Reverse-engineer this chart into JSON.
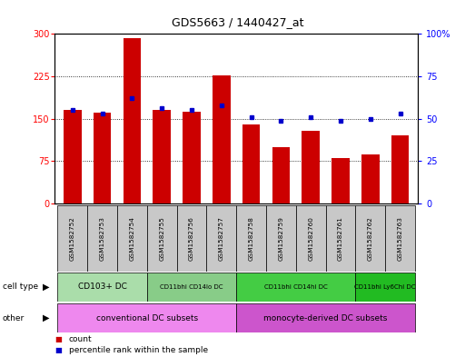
{
  "title": "GDS5663 / 1440427_at",
  "samples": [
    "GSM1582752",
    "GSM1582753",
    "GSM1582754",
    "GSM1582755",
    "GSM1582756",
    "GSM1582757",
    "GSM1582758",
    "GSM1582759",
    "GSM1582760",
    "GSM1582761",
    "GSM1582762",
    "GSM1582763"
  ],
  "counts": [
    165,
    160,
    293,
    165,
    163,
    226,
    140,
    100,
    128,
    80,
    87,
    120
  ],
  "percentiles": [
    55,
    53,
    62,
    56,
    55,
    58,
    51,
    49,
    51,
    49,
    50,
    53
  ],
  "ylim_left": [
    0,
    300
  ],
  "ylim_right": [
    0,
    100
  ],
  "yticks_left": [
    0,
    75,
    150,
    225,
    300
  ],
  "yticks_right": [
    0,
    25,
    50,
    75,
    100
  ],
  "bar_color": "#cc0000",
  "dot_color": "#0000cc",
  "cell_type_groups": [
    {
      "label": "CD103+ DC",
      "start": 0,
      "end": 2,
      "color": "#aaddaa"
    },
    {
      "label": "CD11bhi CD14lo DC",
      "start": 3,
      "end": 5,
      "color": "#88cc88"
    },
    {
      "label": "CD11bhi CD14hi DC",
      "start": 6,
      "end": 9,
      "color": "#44cc44"
    },
    {
      "label": "CD11bhi Ly6Chi DC",
      "start": 10,
      "end": 11,
      "color": "#22bb22"
    }
  ],
  "other_groups": [
    {
      "label": "conventional DC subsets",
      "start": 0,
      "end": 5,
      "color": "#ee88ee"
    },
    {
      "label": "monocyte-derived DC subsets",
      "start": 6,
      "end": 11,
      "color": "#cc55cc"
    }
  ],
  "bg_color": "#c8c8c8",
  "legend_count_color": "#cc0000",
  "legend_pct_color": "#0000cc"
}
